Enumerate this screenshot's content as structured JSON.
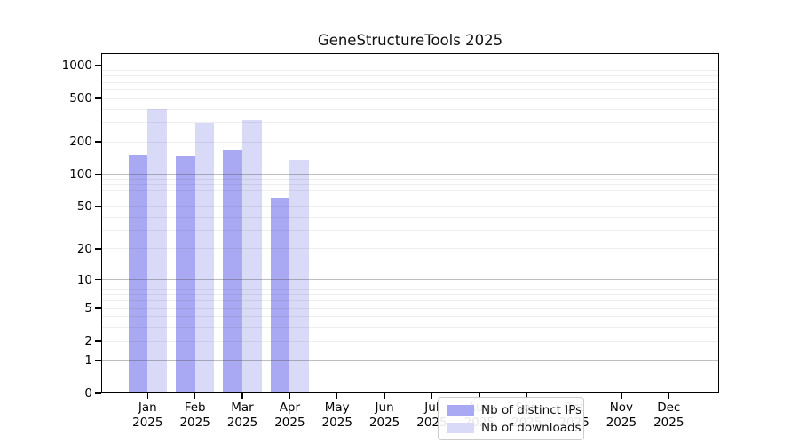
{
  "title": "GeneStructureTools 2025",
  "chart_data": {
    "type": "bar",
    "title": "GeneStructureTools 2025",
    "yscale": "log1p",
    "ylim": [
      0,
      1300
    ],
    "y_ticks": [
      0,
      1,
      2,
      5,
      10,
      20,
      50,
      100,
      200,
      500,
      1000
    ],
    "grid": true,
    "categories": [
      "Jan",
      "Feb",
      "Mar",
      "Apr",
      "May",
      "Jun",
      "Jul",
      "Aug",
      "Sep",
      "Oct",
      "Nov",
      "Dec"
    ],
    "year": "2025",
    "series": [
      {
        "name": "Nb of distinct IPs",
        "color": "#a8a8f3",
        "values": [
          150,
          147,
          168,
          60,
          null,
          null,
          null,
          null,
          null,
          null,
          null,
          null
        ]
      },
      {
        "name": "Nb of downloads",
        "color": "#d9d9f8",
        "values": [
          400,
          297,
          317,
          135,
          null,
          null,
          null,
          null,
          null,
          null,
          null,
          null
        ]
      }
    ],
    "legend_position": "lower center",
    "colors": {
      "grid_major": "#b4b4b4",
      "grid_minor": "#ececec",
      "axis": "#000000",
      "background": "#ffffff"
    }
  }
}
